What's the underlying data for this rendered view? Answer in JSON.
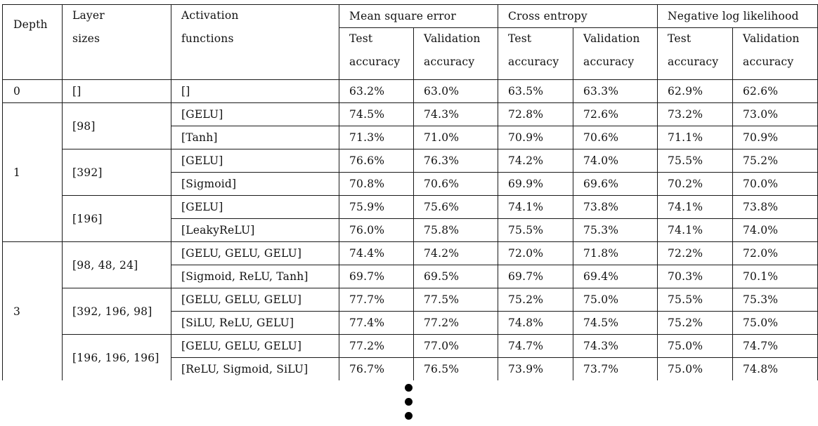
{
  "table": {
    "headers": {
      "depth": "Depth",
      "layer_sizes": [
        "Layer",
        "sizes"
      ],
      "activation_functions": [
        "Activation",
        "functions"
      ],
      "groups": [
        "Mean square error",
        "Cross entropy",
        "Negative log likelihood"
      ],
      "test_accuracy": [
        "Test",
        "accuracy"
      ],
      "validation_accuracy": [
        "Validation",
        "accuracy"
      ]
    },
    "rows": [
      {
        "depth": "0",
        "layers": "[]",
        "activation": "[]",
        "values": [
          "63.2%",
          "63.0%",
          "63.5%",
          "63.3%",
          "62.9%",
          "62.6%"
        ]
      },
      {
        "depth": "1",
        "layers": "[98]",
        "activation": "[GELU]",
        "values": [
          "74.5%",
          "74.3%",
          "72.8%",
          "72.6%",
          "73.2%",
          "73.0%"
        ]
      },
      {
        "depth": "",
        "layers": "",
        "activation": "[Tanh]",
        "values": [
          "71.3%",
          "71.0%",
          "70.9%",
          "70.6%",
          "71.1%",
          "70.9%"
        ]
      },
      {
        "depth": "",
        "layers": "[392]",
        "activation": "[GELU]",
        "values": [
          "76.6%",
          "76.3%",
          "74.2%",
          "74.0%",
          "75.5%",
          "75.2%"
        ]
      },
      {
        "depth": "",
        "layers": "",
        "activation": "[Sigmoid]",
        "values": [
          "70.8%",
          "70.6%",
          "69.9%",
          "69.6%",
          "70.2%",
          "70.0%"
        ]
      },
      {
        "depth": "",
        "layers": "[196]",
        "activation": "[GELU]",
        "values": [
          "75.9%",
          "75.6%",
          "74.1%",
          "73.8%",
          "74.1%",
          "73.8%"
        ]
      },
      {
        "depth": "",
        "layers": "",
        "activation": "[LeakyReLU]",
        "values": [
          "76.0%",
          "75.8%",
          "75.5%",
          "75.3%",
          "74.1%",
          "74.0%"
        ]
      },
      {
        "depth": "3",
        "layers": "[98, 48, 24]",
        "activation": "[GELU, GELU, GELU]",
        "values": [
          "74.4%",
          "74.2%",
          "72.0%",
          "71.8%",
          "72.2%",
          "72.0%"
        ]
      },
      {
        "depth": "",
        "layers": "",
        "activation": "[Sigmoid, ReLU, Tanh]",
        "values": [
          "69.7%",
          "69.5%",
          "69.7%",
          "69.4%",
          "70.3%",
          "70.1%"
        ]
      },
      {
        "depth": "",
        "layers": "[392, 196, 98]",
        "activation": "[GELU, GELU, GELU]",
        "values": [
          "77.7%",
          "77.5%",
          "75.2%",
          "75.0%",
          "75.5%",
          "75.3%"
        ]
      },
      {
        "depth": "",
        "layers": "",
        "activation": "[SiLU, ReLU, GELU]",
        "values": [
          "77.4%",
          "77.2%",
          "74.8%",
          "74.5%",
          "75.2%",
          "75.0%"
        ]
      },
      {
        "depth": "",
        "layers": "[196, 196, 196]",
        "activation": "[GELU, GELU, GELU]",
        "values": [
          "77.2%",
          "77.0%",
          "74.7%",
          "74.3%",
          "75.0%",
          "74.7%"
        ]
      },
      {
        "depth": "",
        "layers": "",
        "activation": "[ReLU, Sigmoid, SiLU]",
        "values": [
          "76.7%",
          "76.5%",
          "73.9%",
          "73.7%",
          "75.0%",
          "74.8%"
        ]
      }
    ]
  }
}
